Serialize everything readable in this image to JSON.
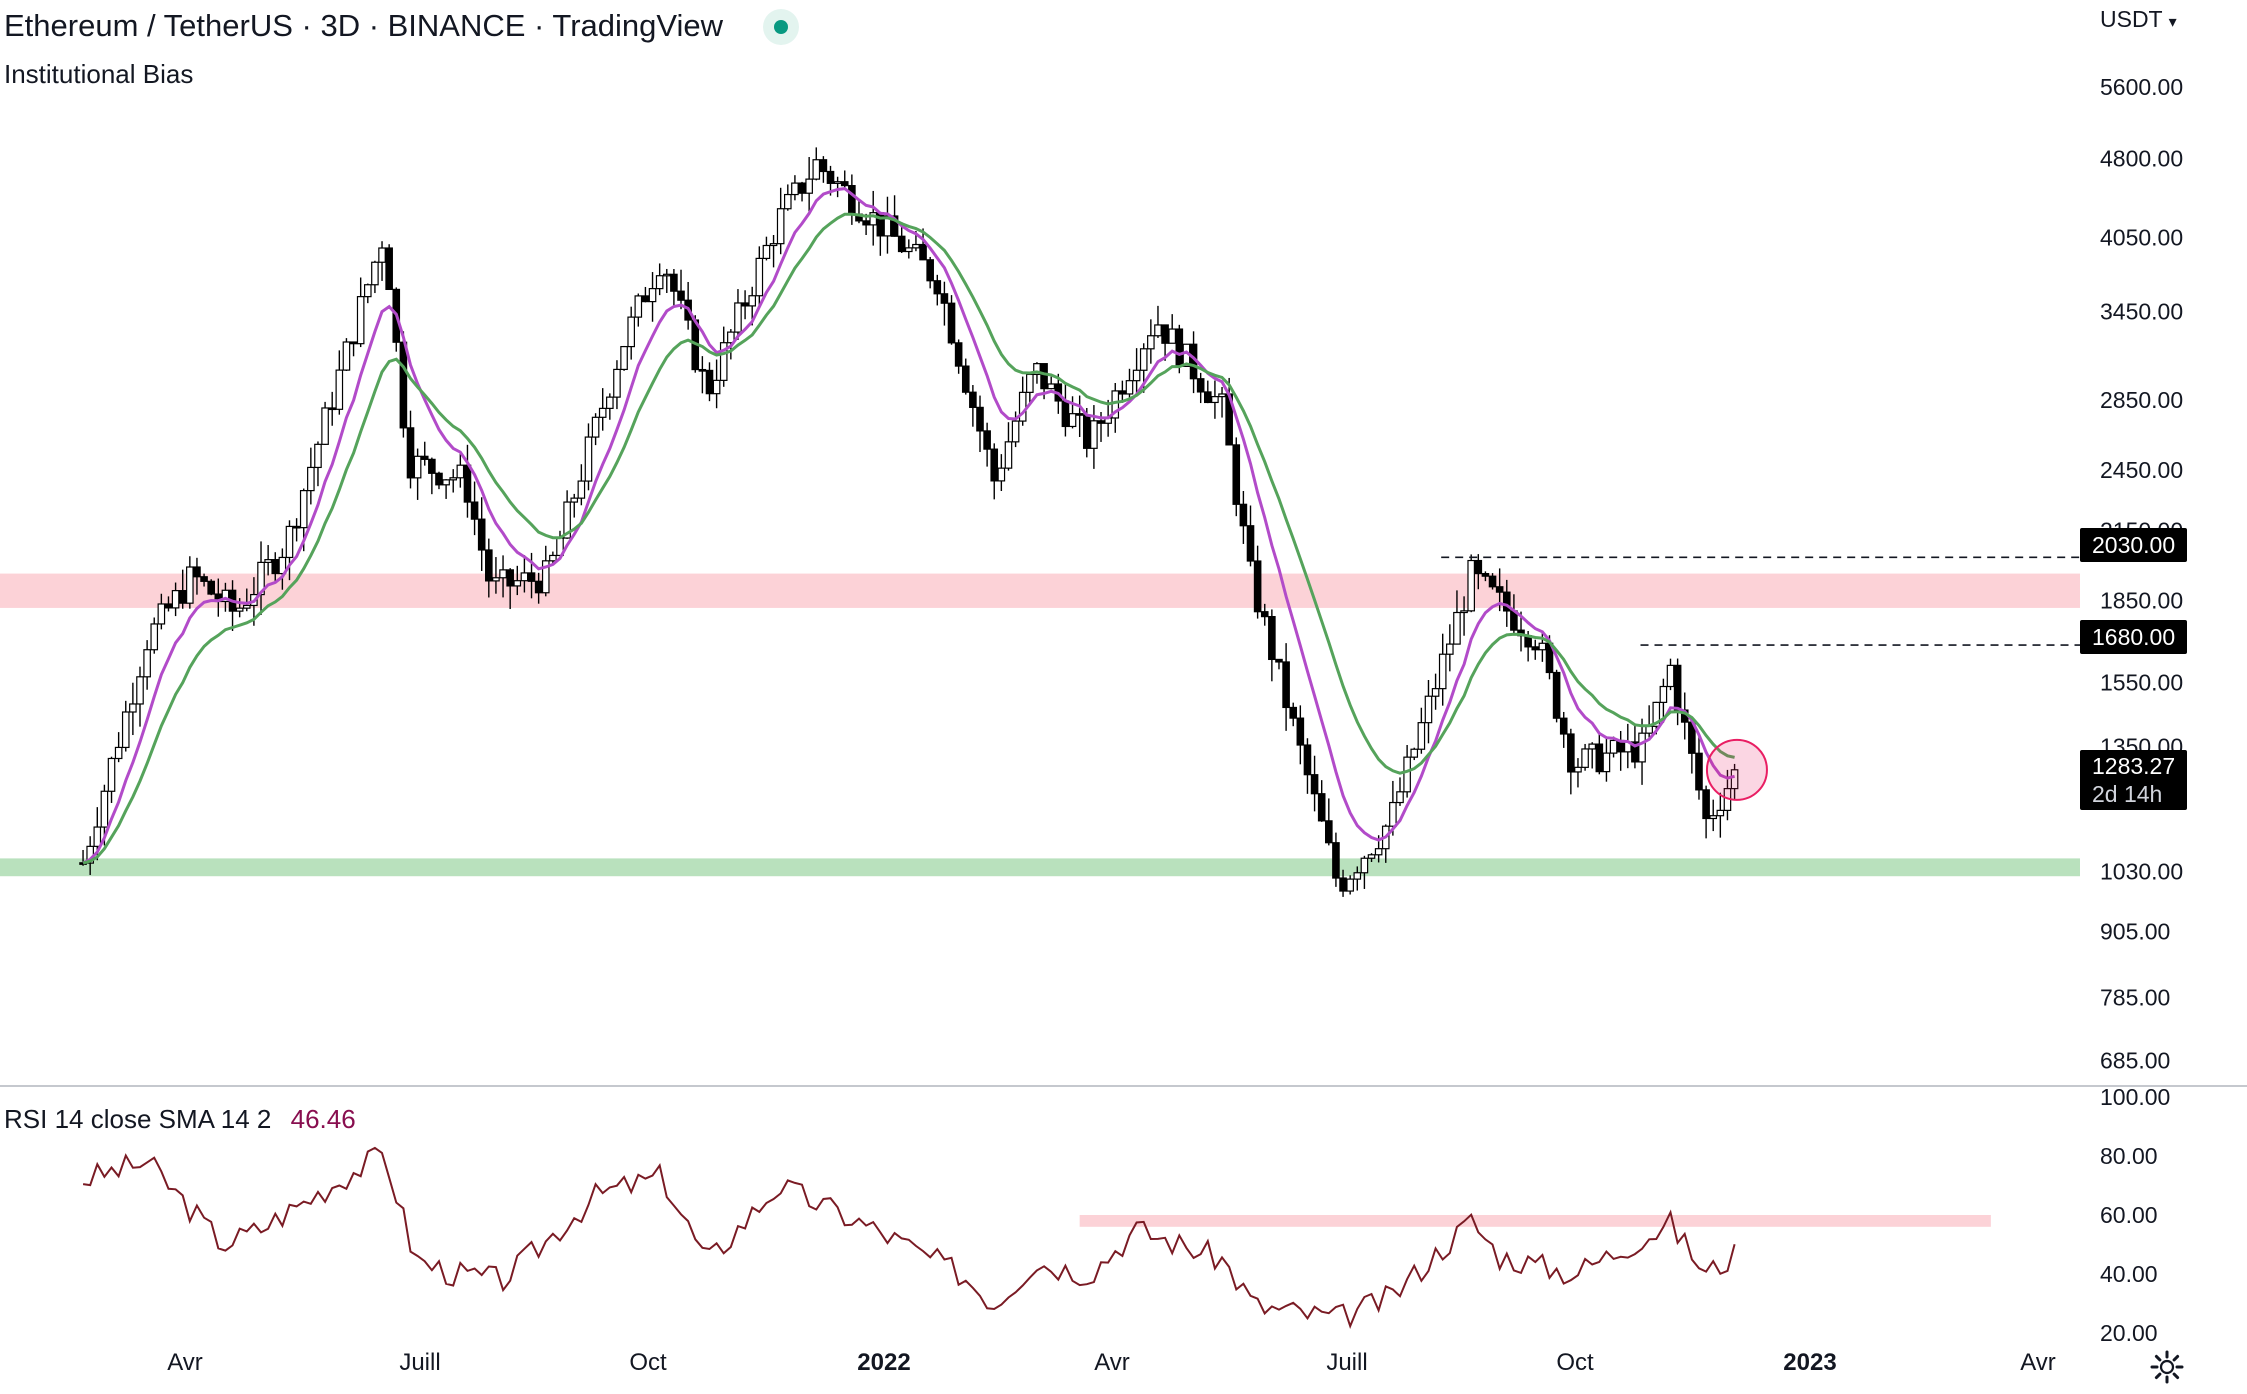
{
  "header": {
    "title": "Ethereum / TetherUS · 3D · BINANCE · TradingView",
    "indicator": "Institutional Bias",
    "currency": "USDT"
  },
  "colors": {
    "candle": "#000000",
    "ema_fast": "#b24bc9",
    "ema_slow": "#55a35b",
    "rsi_line": "#7a1b24",
    "resistance_zone": "#fcd2d7",
    "support_zone": "#b9e1bd",
    "status_dot": "#089981"
  },
  "price_axis": {
    "labels": [
      "5600.00",
      "4800.00",
      "4050.00",
      "3450.00",
      "2850.00",
      "2450.00",
      "2150.00",
      "1850.00",
      "1550.00",
      "1350.00",
      "1030.00",
      "905.00",
      "785.00",
      "685.00"
    ],
    "scale": "log"
  },
  "price_tags": {
    "level_high": "2030.00",
    "level_mid": "1680.00",
    "current_price": "1283.27",
    "countdown": "2d 14h"
  },
  "time_axis": {
    "labels": [
      "Avr",
      "Juill",
      "Oct",
      "2022",
      "Avr",
      "Juill",
      "Oct",
      "2023",
      "Avr"
    ]
  },
  "rsi": {
    "legend": "RSI 14 close SMA 14 2",
    "value": "46.46",
    "axis_labels": [
      "100.00",
      "80.00",
      "60.00",
      "40.00",
      "20.00"
    ]
  },
  "chart_data": [
    {
      "type": "candlestick",
      "title": "Ethereum / TetherUS · 3D · BINANCE",
      "interval": "3D",
      "x_range": [
        "2021-01",
        "2023-05"
      ],
      "y_scale": "log",
      "ylim": [
        650,
        6200
      ],
      "close_path": [
        {
          "x": "2021-01-05",
          "y": 1050
        },
        {
          "x": "2021-02-01",
          "y": 1700
        },
        {
          "x": "2021-02-20",
          "y": 1950
        },
        {
          "x": "2021-03-10",
          "y": 1800
        },
        {
          "x": "2021-04-01",
          "y": 2100
        },
        {
          "x": "2021-05-12",
          "y": 4100
        },
        {
          "x": "2021-05-22",
          "y": 2500
        },
        {
          "x": "2021-06-15",
          "y": 2400
        },
        {
          "x": "2021-06-26",
          "y": 1900
        },
        {
          "x": "2021-07-20",
          "y": 1950
        },
        {
          "x": "2021-08-20",
          "y": 3200
        },
        {
          "x": "2021-09-06",
          "y": 3900
        },
        {
          "x": "2021-09-25",
          "y": 2900
        },
        {
          "x": "2021-10-25",
          "y": 4200
        },
        {
          "x": "2021-11-10",
          "y": 4750
        },
        {
          "x": "2021-12-05",
          "y": 4200
        },
        {
          "x": "2021-12-31",
          "y": 3700
        },
        {
          "x": "2022-01-24",
          "y": 2400
        },
        {
          "x": "2022-02-10",
          "y": 3050
        },
        {
          "x": "2022-03-05",
          "y": 2600
        },
        {
          "x": "2022-04-02",
          "y": 3400
        },
        {
          "x": "2022-04-30",
          "y": 2800
        },
        {
          "x": "2022-05-12",
          "y": 1950
        },
        {
          "x": "2022-06-18",
          "y": 1000
        },
        {
          "x": "2022-07-10",
          "y": 1150
        },
        {
          "x": "2022-08-13",
          "y": 1950
        },
        {
          "x": "2022-09-10",
          "y": 1700
        },
        {
          "x": "2022-09-25",
          "y": 1300
        },
        {
          "x": "2022-10-25",
          "y": 1350
        },
        {
          "x": "2022-11-05",
          "y": 1600
        },
        {
          "x": "2022-11-20",
          "y": 1150
        },
        {
          "x": "2022-12-03",
          "y": 1283.27
        }
      ],
      "series": [
        {
          "values": "EMA fast (purple)"
        },
        {
          "values": "EMA slow (green)"
        }
      ],
      "annotations": [
        {
          "type": "zone",
          "color": "resistance",
          "y_range": [
            1820,
            1960
          ]
        },
        {
          "type": "zone",
          "color": "support",
          "y_range": [
            1020,
            1060
          ]
        },
        {
          "type": "hline-dashed",
          "y": 2030,
          "x_start": "2022-08-13"
        },
        {
          "type": "hline-dashed",
          "y": 1680,
          "x_start": "2022-11-05"
        },
        {
          "type": "circle",
          "x": "2022-12-03",
          "y": 1283.27
        }
      ]
    },
    {
      "type": "line",
      "title": "RSI 14 close SMA 14 2",
      "ylim": [
        20,
        100
      ],
      "current_value": 46.46,
      "x": [
        "2021-01-05",
        "2021-02-01",
        "2021-03-05",
        "2021-03-20",
        "2021-05-12",
        "2021-05-25",
        "2021-06-10",
        "2021-07-01",
        "2021-08-10",
        "2021-09-06",
        "2021-09-25",
        "2021-10-25",
        "2021-12-05",
        "2022-01-10",
        "2022-01-24",
        "2022-02-10",
        "2022-03-05",
        "2022-03-25",
        "2022-04-30",
        "2022-05-14",
        "2022-06-18",
        "2022-07-10",
        "2022-08-13",
        "2022-08-25",
        "2022-09-25",
        "2022-11-05",
        "2022-11-20",
        "2022-12-03"
      ],
      "y": [
        72,
        78,
        50,
        55,
        81,
        45,
        40,
        38,
        67,
        73,
        44,
        70,
        55,
        40,
        30,
        44,
        40,
        55,
        45,
        29,
        25,
        32,
        58,
        46,
        40,
        57,
        40,
        47
      ],
      "annotations": [
        {
          "type": "zone",
          "color": "resistance",
          "y_range": [
            56,
            60
          ],
          "x_range": [
            "2022-03-01",
            "2023-03-20"
          ]
        }
      ]
    }
  ]
}
